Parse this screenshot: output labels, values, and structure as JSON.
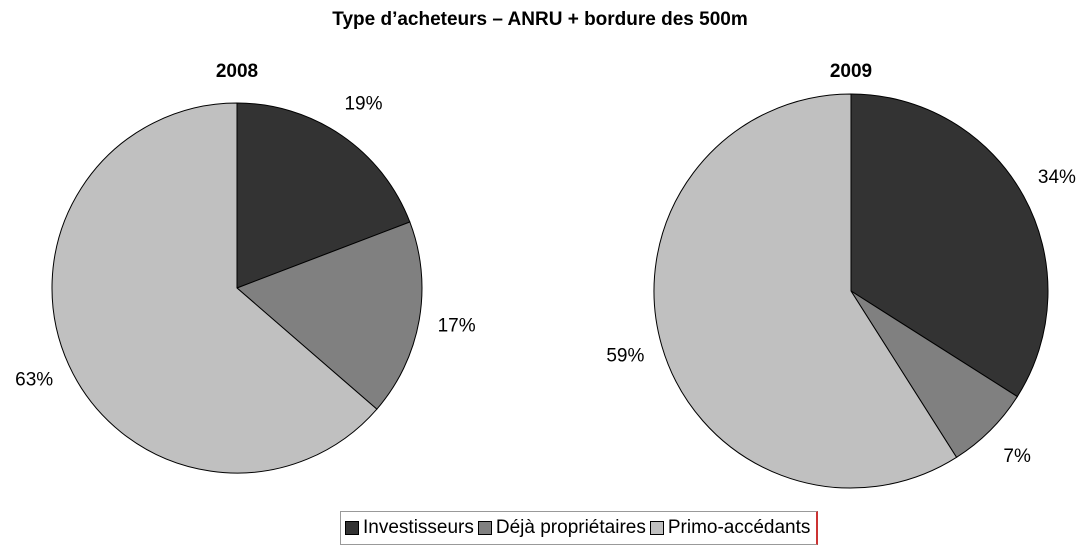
{
  "title": "Type d’acheteurs – ANRU + bordure des 500m",
  "categories": [
    "Investisseurs",
    "Déjà propriétaires",
    "Primo-accédants"
  ],
  "colors": [
    "#333333",
    "#808080",
    "#c0c0c0"
  ],
  "chart_data": [
    {
      "type": "pie",
      "title": "2008",
      "values": [
        19,
        17,
        63
      ],
      "value_labels": [
        "19%",
        "17%",
        "63%"
      ]
    },
    {
      "type": "pie",
      "title": "2009",
      "values": [
        34,
        7,
        59
      ],
      "value_labels": [
        "34%",
        "7%",
        "59%"
      ]
    }
  ]
}
